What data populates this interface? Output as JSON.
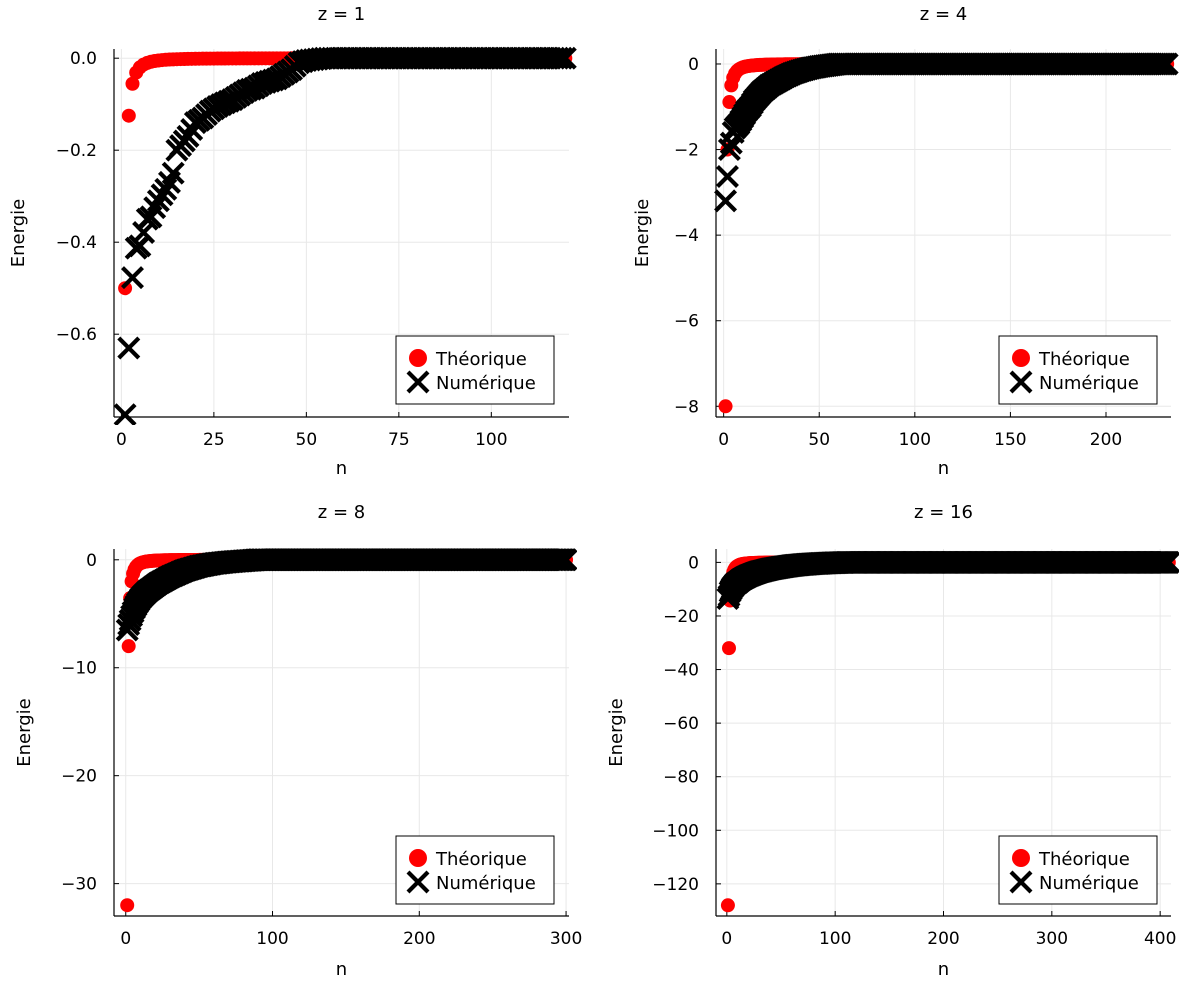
{
  "chart_data": [
    {
      "type": "scatter",
      "title": "z = 1",
      "xlabel": "n",
      "ylabel": "Energie",
      "xlim": [
        -2,
        121
      ],
      "ylim": [
        -0.78,
        0.02
      ],
      "xticks": [
        0,
        25,
        50,
        75,
        100
      ],
      "xtick_labels": [
        "0",
        "25",
        "50",
        "75",
        "100"
      ],
      "yticks": [
        0,
        -0.2,
        -0.4,
        -0.6
      ],
      "ytick_labels": [
        "0.0",
        "−0.2",
        "−0.4",
        "−0.6"
      ],
      "grid": true,
      "legend_position": "bottom-right",
      "z": 1,
      "n_max": 120,
      "series": [
        {
          "name": "Théorique",
          "marker": "circle",
          "color": "#ff0000",
          "formula": "-z^2/(2n^2)"
        },
        {
          "name": "Numérique",
          "marker": "x",
          "color": "#000000",
          "points": [
            [
              1,
              -0.775
            ],
            [
              2,
              -0.63
            ],
            [
              3,
              -0.477
            ],
            [
              4,
              -0.413
            ],
            [
              5,
              -0.408
            ],
            [
              7,
              -0.35
            ],
            [
              8,
              -0.345
            ],
            [
              9,
              -0.325
            ],
            [
              10,
              -0.31
            ],
            [
              11,
              -0.297
            ],
            [
              12,
              -0.285
            ],
            [
              13,
              -0.27
            ],
            [
              14,
              -0.25
            ],
            [
              15,
              -0.2
            ],
            [
              16,
              -0.19
            ],
            [
              17,
              -0.18
            ],
            [
              18,
              -0.17
            ],
            [
              19,
              -0.155
            ],
            [
              20,
              -0.14
            ],
            [
              22,
              -0.13
            ],
            [
              24,
              -0.115
            ],
            [
              26,
              -0.105
            ],
            [
              28,
              -0.097
            ],
            [
              30,
              -0.09
            ],
            [
              32,
              -0.08
            ],
            [
              34,
              -0.07
            ],
            [
              36,
              -0.065
            ],
            [
              38,
              -0.055
            ],
            [
              40,
              -0.05
            ],
            [
              42,
              -0.045
            ],
            [
              44,
              -0.035
            ],
            [
              46,
              -0.025
            ],
            [
              48,
              -0.01
            ],
            [
              50,
              -0.005
            ],
            [
              55,
              0
            ],
            [
              60,
              0
            ],
            [
              70,
              0
            ],
            [
              80,
              0
            ],
            [
              90,
              0
            ],
            [
              100,
              0
            ],
            [
              110,
              0
            ],
            [
              120,
              0
            ]
          ]
        }
      ]
    },
    {
      "type": "scatter",
      "title": "z = 4",
      "xlabel": "n",
      "ylabel": "Energie",
      "xlim": [
        -4,
        234
      ],
      "ylim": [
        -8.25,
        0.35
      ],
      "xticks": [
        0,
        50,
        100,
        150,
        200
      ],
      "xtick_labels": [
        "0",
        "50",
        "100",
        "150",
        "200"
      ],
      "yticks": [
        0,
        -2,
        -4,
        -6,
        -8
      ],
      "ytick_labels": [
        "0",
        "−2",
        "−4",
        "−6",
        "−8"
      ],
      "grid": true,
      "legend_position": "bottom-right",
      "z": 4,
      "n_max": 232,
      "series": [
        {
          "name": "Théorique",
          "marker": "circle",
          "color": "#ff0000",
          "formula": "-z^2/(2n^2)"
        },
        {
          "name": "Numérique",
          "marker": "x",
          "color": "#000000",
          "points": [
            [
              1,
              -3.2
            ],
            [
              2,
              -2.63
            ],
            [
              3,
              -2.0
            ],
            [
              4,
              -1.85
            ],
            [
              5,
              -1.6
            ],
            [
              6,
              -1.5
            ],
            [
              8,
              -1.4
            ],
            [
              10,
              -1.25
            ],
            [
              12,
              -1.1
            ],
            [
              14,
              -1.0
            ],
            [
              16,
              -0.85
            ],
            [
              18,
              -0.75
            ],
            [
              20,
              -0.65
            ],
            [
              24,
              -0.5
            ],
            [
              28,
              -0.4
            ],
            [
              32,
              -0.3
            ],
            [
              36,
              -0.22
            ],
            [
              40,
              -0.16
            ],
            [
              45,
              -0.1
            ],
            [
              50,
              -0.06
            ],
            [
              55,
              -0.03
            ],
            [
              60,
              0
            ],
            [
              80,
              0
            ],
            [
              100,
              0
            ],
            [
              130,
              0
            ],
            [
              160,
              0
            ],
            [
              190,
              0
            ],
            [
              232,
              0
            ]
          ]
        }
      ]
    },
    {
      "type": "scatter",
      "title": "z = 8",
      "xlabel": "n",
      "ylabel": "Energie",
      "xlim": [
        -8,
        302
      ],
      "ylim": [
        -33,
        1
      ],
      "xticks": [
        0,
        100,
        200,
        300
      ],
      "xtick_labels": [
        "0",
        "100",
        "200",
        "300"
      ],
      "yticks": [
        0,
        -10,
        -20,
        -30
      ],
      "ytick_labels": [
        "0",
        "−10",
        "−20",
        "−30"
      ],
      "grid": true,
      "legend_position": "bottom-right",
      "z": 8,
      "n_max": 300,
      "series": [
        {
          "name": "Théorique",
          "marker": "circle",
          "color": "#ff0000",
          "formula": "-z^2/(2n^2)"
        },
        {
          "name": "Numérique",
          "marker": "x",
          "color": "#000000",
          "points": [
            [
              1,
              -6.5
            ],
            [
              2,
              -6.0
            ],
            [
              4,
              -5.2
            ],
            [
              6,
              -4.5
            ],
            [
              8,
              -4.0
            ],
            [
              10,
              -3.6
            ],
            [
              12,
              -3.3
            ],
            [
              15,
              -2.9
            ],
            [
              18,
              -2.6
            ],
            [
              22,
              -2.2
            ],
            [
              26,
              -1.9
            ],
            [
              30,
              -1.6
            ],
            [
              35,
              -1.3
            ],
            [
              40,
              -1.0
            ],
            [
              45,
              -0.8
            ],
            [
              50,
              -0.6
            ],
            [
              60,
              -0.35
            ],
            [
              70,
              -0.2
            ],
            [
              80,
              -0.1
            ],
            [
              90,
              0
            ],
            [
              120,
              0
            ],
            [
              160,
              0
            ],
            [
              200,
              0
            ],
            [
              250,
              0
            ],
            [
              300,
              0
            ]
          ]
        }
      ]
    },
    {
      "type": "scatter",
      "title": "z = 16",
      "xlabel": "n",
      "ylabel": "Energie",
      "xlim": [
        -10,
        410
      ],
      "ylim": [
        -132,
        5
      ],
      "xticks": [
        0,
        100,
        200,
        300,
        400
      ],
      "xtick_labels": [
        "0",
        "100",
        "200",
        "300",
        "400"
      ],
      "yticks": [
        0,
        -20,
        -40,
        -60,
        -80,
        -100,
        -120
      ],
      "ytick_labels": [
        "0",
        "−20",
        "−40",
        "−60",
        "−80",
        "−100",
        "−120"
      ],
      "grid": true,
      "legend_position": "bottom-right",
      "z": 16,
      "n_max": 408,
      "series": [
        {
          "name": "Théorique",
          "marker": "circle",
          "color": "#ff0000",
          "formula": "-z^2/(2n^2)"
        },
        {
          "name": "Numérique",
          "marker": "x",
          "color": "#000000",
          "points": [
            [
              1,
              -13.5
            ],
            [
              2,
              -12.5
            ],
            [
              3,
              -11
            ],
            [
              5,
              -9.5
            ],
            [
              8,
              -8
            ],
            [
              10,
              -7.5
            ],
            [
              13,
              -6.5
            ],
            [
              16,
              -5.8
            ],
            [
              20,
              -5
            ],
            [
              25,
              -4.2
            ],
            [
              30,
              -3.5
            ],
            [
              35,
              -3
            ],
            [
              40,
              -2.5
            ],
            [
              50,
              -1.8
            ],
            [
              60,
              -1.2
            ],
            [
              70,
              -0.8
            ],
            [
              80,
              -0.5
            ],
            [
              95,
              -0.2
            ],
            [
              110,
              0
            ],
            [
              150,
              0
            ],
            [
              200,
              0
            ],
            [
              250,
              0
            ],
            [
              300,
              0
            ],
            [
              350,
              0
            ],
            [
              408,
              0
            ]
          ]
        }
      ]
    }
  ]
}
